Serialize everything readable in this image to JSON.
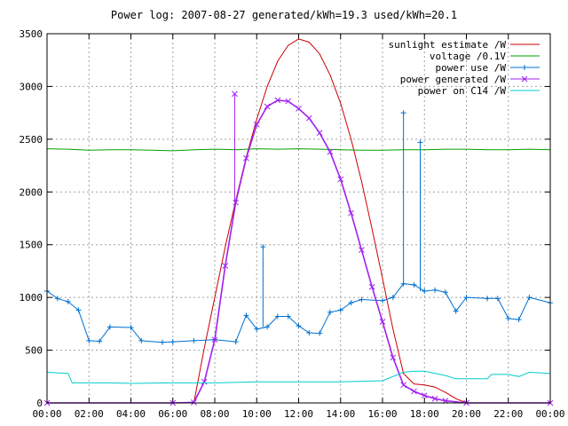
{
  "chart_data": {
    "type": "line",
    "title": "Power log: 2007-08-27 generated/kWh=19.3 used/kWh=20.1",
    "xlabel": "",
    "ylabel": "",
    "xlim": [
      0,
      24
    ],
    "ylim": [
      0,
      3500
    ],
    "x_tick_labels": [
      "00:00",
      "02:00",
      "04:00",
      "06:00",
      "08:00",
      "10:00",
      "12:00",
      "14:00",
      "16:00",
      "18:00",
      "20:00",
      "22:00",
      "00:00"
    ],
    "y_ticks": [
      0,
      500,
      1000,
      1500,
      2000,
      2500,
      3000,
      3500
    ],
    "grid": true,
    "legend_position": "top-right",
    "series": [
      {
        "name": "sunlight estimate /W",
        "color": "#cc0000",
        "style": "line",
        "points": [
          [
            7.0,
            0
          ],
          [
            7.5,
            520
          ],
          [
            8.0,
            1000
          ],
          [
            8.5,
            1480
          ],
          [
            9.0,
            1920
          ],
          [
            9.5,
            2330
          ],
          [
            10.0,
            2690
          ],
          [
            10.5,
            3000
          ],
          [
            11.0,
            3240
          ],
          [
            11.5,
            3390
          ],
          [
            12.0,
            3450
          ],
          [
            12.5,
            3420
          ],
          [
            13.0,
            3310
          ],
          [
            13.5,
            3110
          ],
          [
            14.0,
            2840
          ],
          [
            14.5,
            2500
          ],
          [
            15.0,
            2100
          ],
          [
            15.5,
            1650
          ],
          [
            16.0,
            1180
          ],
          [
            16.5,
            700
          ],
          [
            17.0,
            280
          ],
          [
            17.5,
            180
          ],
          [
            18.0,
            170
          ],
          [
            18.5,
            150
          ],
          [
            19.0,
            100
          ],
          [
            19.5,
            40
          ],
          [
            20.0,
            0
          ]
        ]
      },
      {
        "name": "voltage /0.1V",
        "color": "#00a000",
        "style": "line",
        "points": [
          [
            0,
            2410
          ],
          [
            1,
            2405
          ],
          [
            2,
            2395
          ],
          [
            3,
            2400
          ],
          [
            4,
            2400
          ],
          [
            5,
            2395
          ],
          [
            6,
            2390
          ],
          [
            7,
            2400
          ],
          [
            8,
            2405
          ],
          [
            9,
            2400
          ],
          [
            10,
            2410
          ],
          [
            11,
            2405
          ],
          [
            12,
            2410
          ],
          [
            13,
            2405
          ],
          [
            14,
            2400
          ],
          [
            15,
            2395
          ],
          [
            16,
            2395
          ],
          [
            17,
            2400
          ],
          [
            18,
            2400
          ],
          [
            19,
            2405
          ],
          [
            20,
            2405
          ],
          [
            21,
            2400
          ],
          [
            22,
            2400
          ],
          [
            23,
            2405
          ],
          [
            24,
            2400
          ]
        ]
      },
      {
        "name": "power use /W",
        "color": "#0070d0",
        "style": "line+plus",
        "points": [
          [
            0,
            1060
          ],
          [
            0.5,
            990
          ],
          [
            1.0,
            960
          ],
          [
            1.5,
            880
          ],
          [
            2.0,
            590
          ],
          [
            2.5,
            585
          ],
          [
            3.0,
            720
          ],
          [
            4.0,
            715
          ],
          [
            4.5,
            590
          ],
          [
            5.5,
            575
          ],
          [
            6.0,
            580
          ],
          [
            7.0,
            590
          ],
          [
            8.0,
            600
          ],
          [
            9.0,
            580
          ],
          [
            9.5,
            830
          ],
          [
            10.0,
            700
          ],
          [
            10.5,
            720
          ],
          [
            11.0,
            820
          ],
          [
            11.5,
            820
          ],
          [
            12.0,
            730
          ],
          [
            12.5,
            665
          ],
          [
            13.0,
            660
          ],
          [
            13.5,
            860
          ],
          [
            14.0,
            880
          ],
          [
            14.5,
            950
          ],
          [
            15.0,
            980
          ],
          [
            16.0,
            970
          ],
          [
            16.5,
            1000
          ],
          [
            17.0,
            1130
          ],
          [
            17.5,
            1120
          ],
          [
            18.0,
            1060
          ],
          [
            18.5,
            1070
          ],
          [
            19.0,
            1050
          ],
          [
            19.5,
            870
          ],
          [
            20.0,
            1000
          ],
          [
            21.0,
            990
          ],
          [
            21.5,
            990
          ],
          [
            22.0,
            800
          ],
          [
            22.5,
            790
          ],
          [
            23.0,
            1000
          ],
          [
            24.0,
            950
          ]
        ]
      },
      {
        "name": "power generated /W",
        "color": "#a020f0",
        "style": "line+cross",
        "points": [
          [
            0,
            0
          ],
          [
            6.0,
            0
          ],
          [
            7.0,
            5
          ],
          [
            7.5,
            200
          ],
          [
            8.0,
            600
          ],
          [
            8.5,
            1300
          ],
          [
            9.0,
            1900
          ],
          [
            9.5,
            2320
          ],
          [
            10.0,
            2640
          ],
          [
            10.5,
            2810
          ],
          [
            11.0,
            2870
          ],
          [
            11.5,
            2860
          ],
          [
            12.0,
            2790
          ],
          [
            12.5,
            2700
          ],
          [
            13.0,
            2560
          ],
          [
            13.5,
            2380
          ],
          [
            14.0,
            2120
          ],
          [
            14.5,
            1800
          ],
          [
            15.0,
            1450
          ],
          [
            15.5,
            1100
          ],
          [
            16.0,
            770
          ],
          [
            16.5,
            430
          ],
          [
            17.0,
            170
          ],
          [
            17.5,
            110
          ],
          [
            18.0,
            70
          ],
          [
            18.5,
            40
          ],
          [
            19.0,
            20
          ],
          [
            20.0,
            0
          ],
          [
            24.0,
            0
          ]
        ]
      },
      {
        "name": "power on C14 /W",
        "color": "#00cccc",
        "style": "line",
        "points": [
          [
            0,
            290
          ],
          [
            1.0,
            280
          ],
          [
            1.2,
            190
          ],
          [
            3.0,
            190
          ],
          [
            4.0,
            185
          ],
          [
            6.0,
            190
          ],
          [
            8.0,
            190
          ],
          [
            10.0,
            200
          ],
          [
            12.0,
            200
          ],
          [
            14.0,
            200
          ],
          [
            16.0,
            210
          ],
          [
            17.0,
            290
          ],
          [
            17.5,
            300
          ],
          [
            18.0,
            300
          ],
          [
            19.0,
            260
          ],
          [
            19.5,
            230
          ],
          [
            21.0,
            230
          ],
          [
            21.2,
            270
          ],
          [
            22.0,
            270
          ],
          [
            22.5,
            250
          ],
          [
            23.0,
            290
          ],
          [
            24.0,
            280
          ]
        ]
      }
    ],
    "spikes": [
      {
        "series": 3,
        "x": 8.95,
        "y": 2930
      },
      {
        "series": 2,
        "x": 17.0,
        "y": 2750
      },
      {
        "series": 2,
        "x": 17.8,
        "y": 2470
      },
      {
        "series": 2,
        "x": 10.3,
        "y": 1480
      }
    ]
  }
}
